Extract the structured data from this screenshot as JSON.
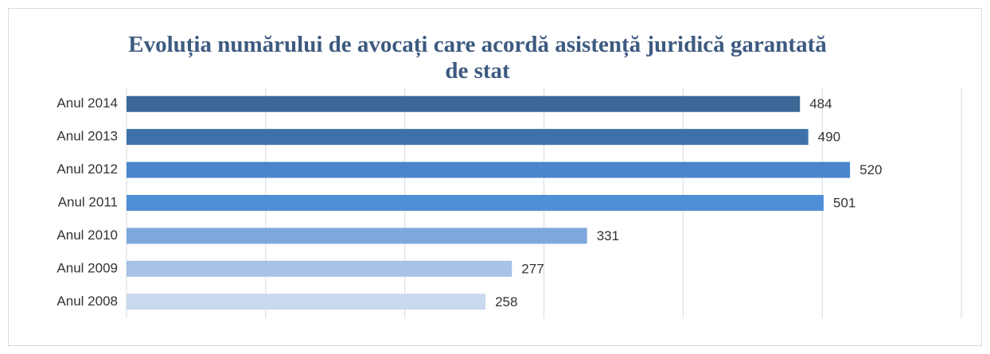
{
  "chart_data": {
    "type": "bar",
    "orientation": "horizontal",
    "title": "Evoluția numărului de avocați care acordă asistență juridică garantată de stat",
    "categories": [
      "Anul 2014",
      "Anul 2013",
      "Anul 2012",
      "Anul 2011",
      "Anul 2010",
      "Anul 2009",
      "Anul 2008"
    ],
    "values": [
      484,
      490,
      520,
      501,
      331,
      277,
      258
    ],
    "colors": [
      "#3a6796",
      "#3e71aa",
      "#4a86c9",
      "#4f8fd7",
      "#7ea7dd",
      "#a8c1e4",
      "#c9d9ef"
    ],
    "xlim": [
      0,
      600
    ],
    "xticks": [
      0,
      100,
      200,
      300,
      400,
      500,
      600
    ],
    "grid": true
  }
}
